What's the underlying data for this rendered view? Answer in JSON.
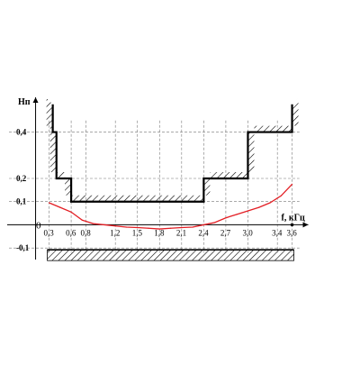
{
  "chart_data": {
    "type": "line",
    "ylabel": "Нп",
    "xlabel": "f, кГц",
    "origin_label": "0",
    "x_ticks": [
      0.3,
      0.6,
      0.8,
      1.2,
      1.5,
      1.8,
      2.1,
      2.4,
      2.7,
      3.0,
      3.4,
      3.6
    ],
    "x_tick_labels": [
      "0,3",
      "0,6",
      "0,8",
      "1,2",
      "1,5",
      "1,8",
      "2,1",
      "2,4",
      "2,7",
      "3,0",
      "3,4",
      "3,6"
    ],
    "y_ticks": [
      0.4,
      0.2,
      0.1,
      -0.1
    ],
    "y_tick_labels": [
      "0,4",
      "0,2",
      "0,1",
      "-0,1"
    ],
    "xlim": [
      0.0,
      3.85
    ],
    "ylim": [
      -0.15,
      0.55
    ],
    "grid": "dashed",
    "upper_mask": {
      "x": [
        0.35,
        0.35,
        0.4,
        0.4,
        0.6,
        0.6,
        2.4,
        2.4,
        3.0,
        3.0,
        3.6,
        3.6
      ],
      "y": [
        0.52,
        0.4,
        0.4,
        0.2,
        0.2,
        0.1,
        0.1,
        0.2,
        0.2,
        0.4,
        0.4,
        0.52
      ]
    },
    "lower_mask": {
      "x_range": [
        0.3,
        3.6
      ],
      "y": -0.1
    },
    "series": [
      {
        "color": "#e31e24",
        "x": [
          0.3,
          0.45,
          0.6,
          0.75,
          0.9,
          1.05,
          1.2,
          1.35,
          1.5,
          1.65,
          1.8,
          1.95,
          2.1,
          2.25,
          2.4,
          2.55,
          2.7,
          2.85,
          3.0,
          3.15,
          3.3,
          3.45,
          3.6
        ],
        "y": [
          0.095,
          0.075,
          0.055,
          0.02,
          0.005,
          0.0,
          -0.005,
          -0.01,
          -0.012,
          -0.015,
          -0.018,
          -0.015,
          -0.012,
          -0.01,
          0.0,
          0.01,
          0.03,
          0.045,
          0.06,
          0.075,
          0.095,
          0.125,
          0.175
        ]
      }
    ]
  }
}
